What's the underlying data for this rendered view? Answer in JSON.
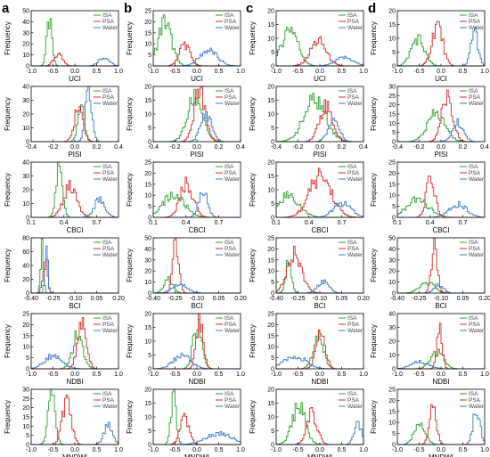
{
  "column_labels": [
    "a",
    "b",
    "c",
    "d"
  ],
  "legend_entries": [
    "ISA",
    "PSA",
    "Water"
  ],
  "ylabel": "Frequency",
  "colors": {
    "ISA": "#2e9e2e",
    "PSA": "#d42a2a",
    "Water": "#3a78c8",
    "hist": "#8a5a2a"
  },
  "rows": [
    {
      "index": "UCI",
      "xlim": [
        -1.0,
        1.0
      ],
      "xticks": [
        "-1.0",
        "-0.5",
        "0.0",
        "0.5",
        "1.0"
      ]
    },
    {
      "index": "PISI",
      "xlim": [
        -0.4,
        0.4
      ],
      "xticks": [
        "-0.4",
        "-0.2",
        "0.0",
        "0.2",
        "0.4"
      ]
    },
    {
      "index": "CBCI",
      "xlim": [
        0.1,
        0.9
      ],
      "xticks": [
        "0.1",
        "0.4",
        "0.7"
      ],
      "xticks_all": [
        "0.2",
        "0.3",
        "0.4",
        "0.5",
        "0.6",
        "0.7",
        "0.8"
      ]
    },
    {
      "index": "BCI",
      "xlim": [
        -0.4,
        0.2
      ],
      "xticks": [
        "-0.40",
        "-0.25",
        "-0.10",
        "0.05",
        "0.20"
      ]
    },
    {
      "index": "NDBI",
      "xlim": [
        -1.0,
        1.0
      ],
      "xticks": [
        "-1.0",
        "-0.5",
        "0.0",
        "0.5",
        "1.0"
      ]
    },
    {
      "index": "MNDWI",
      "xlim": [
        -1.0,
        1.0
      ],
      "xticks": [
        "-1.0",
        "-0.5",
        "0.0",
        "0.5",
        "1.0"
      ]
    }
  ],
  "chart_data": [
    {
      "type": "area",
      "col": "a",
      "index": "UCI",
      "ylim": [
        0,
        50
      ],
      "yticks": [
        "0",
        "10",
        "20",
        "30",
        "40",
        "50"
      ],
      "series": [
        {
          "name": "ISA",
          "center": -0.6,
          "sd": 0.06,
          "peak": 40
        },
        {
          "name": "PSA",
          "center": -0.4,
          "sd": 0.1,
          "peak": 10
        },
        {
          "name": "Water",
          "center": 0.65,
          "sd": 0.12,
          "peak": 8
        }
      ]
    },
    {
      "type": "area",
      "col": "b",
      "index": "UCI",
      "ylim": [
        0,
        25
      ],
      "yticks": [
        "0",
        "5",
        "10",
        "15",
        "20",
        "25"
      ],
      "series": [
        {
          "name": "ISA",
          "center": -0.75,
          "sd": 0.15,
          "peak": 20
        },
        {
          "name": "PSA",
          "center": -0.3,
          "sd": 0.12,
          "peak": 10
        },
        {
          "name": "Water",
          "center": 0.25,
          "sd": 0.2,
          "peak": 7
        }
      ]
    },
    {
      "type": "area",
      "col": "c",
      "index": "UCI",
      "ylim": [
        0,
        20
      ],
      "yticks": [
        "0",
        "5",
        "10",
        "15",
        "20"
      ],
      "series": [
        {
          "name": "ISA",
          "center": -0.7,
          "sd": 0.18,
          "peak": 14
        },
        {
          "name": "PSA",
          "center": -0.05,
          "sd": 0.18,
          "peak": 9
        },
        {
          "name": "Water",
          "center": 0.55,
          "sd": 0.2,
          "peak": 3
        }
      ]
    },
    {
      "type": "area",
      "col": "d",
      "index": "UCI",
      "ylim": [
        0,
        20
      ],
      "yticks": [
        "0",
        "5",
        "10",
        "15",
        "20"
      ],
      "series": [
        {
          "name": "ISA",
          "center": -0.55,
          "sd": 0.15,
          "peak": 10
        },
        {
          "name": "PSA",
          "center": -0.1,
          "sd": 0.12,
          "peak": 15
        },
        {
          "name": "Water",
          "center": 0.75,
          "sd": 0.08,
          "peak": 13
        }
      ]
    },
    {
      "type": "area",
      "col": "a",
      "index": "PISI",
      "ylim": [
        0,
        40
      ],
      "yticks": [
        "0",
        "10",
        "20",
        "30",
        "40"
      ],
      "series": [
        {
          "name": "ISA",
          "center": 0.05,
          "sd": 0.03,
          "peak": 25
        },
        {
          "name": "PSA",
          "center": 0.03,
          "sd": 0.04,
          "peak": 25
        },
        {
          "name": "Water",
          "center": 0.12,
          "sd": 0.03,
          "peak": 35
        }
      ]
    },
    {
      "type": "area",
      "col": "b",
      "index": "PISI",
      "ylim": [
        0,
        20
      ],
      "yticks": [
        "0",
        "5",
        "10",
        "15",
        "20"
      ],
      "series": [
        {
          "name": "ISA",
          "center": -0.02,
          "sd": 0.07,
          "peak": 16
        },
        {
          "name": "PSA",
          "center": 0.02,
          "sd": 0.05,
          "peak": 18
        },
        {
          "name": "Water",
          "center": 0.08,
          "sd": 0.05,
          "peak": 10
        }
      ]
    },
    {
      "type": "area",
      "col": "c",
      "index": "PISI",
      "ylim": [
        0,
        20
      ],
      "yticks": [
        "0",
        "5",
        "10",
        "15",
        "20"
      ],
      "series": [
        {
          "name": "ISA",
          "center": -0.05,
          "sd": 0.1,
          "peak": 15
        },
        {
          "name": "PSA",
          "center": 0.05,
          "sd": 0.06,
          "peak": 13
        },
        {
          "name": "Water",
          "center": 0.12,
          "sd": 0.05,
          "peak": 8
        }
      ]
    },
    {
      "type": "area",
      "col": "d",
      "index": "PISI",
      "ylim": [
        0,
        30
      ],
      "yticks": [
        "0",
        "5",
        "10",
        "15",
        "20",
        "25",
        "30"
      ],
      "series": [
        {
          "name": "ISA",
          "center": -0.05,
          "sd": 0.08,
          "peak": 15
        },
        {
          "name": "PSA",
          "center": 0.05,
          "sd": 0.05,
          "peak": 25
        },
        {
          "name": "Water",
          "center": 0.15,
          "sd": 0.05,
          "peak": 10
        }
      ]
    },
    {
      "type": "area",
      "col": "a",
      "index": "CBCI",
      "ylim": [
        0,
        40
      ],
      "yticks": [
        "0",
        "10",
        "20",
        "30",
        "40"
      ],
      "series": [
        {
          "name": "ISA",
          "center": 0.35,
          "sd": 0.03,
          "peak": 35
        },
        {
          "name": "PSA",
          "center": 0.45,
          "sd": 0.06,
          "peak": 22
        },
        {
          "name": "Water",
          "center": 0.72,
          "sd": 0.05,
          "peak": 13
        }
      ]
    },
    {
      "type": "area",
      "col": "b",
      "index": "CBCI",
      "ylim": [
        0,
        25
      ],
      "yticks": [
        "0",
        "5",
        "10",
        "15",
        "20",
        "25"
      ],
      "series": [
        {
          "name": "ISA",
          "center": 0.28,
          "sd": 0.1,
          "peak": 10
        },
        {
          "name": "PSA",
          "center": 0.4,
          "sd": 0.06,
          "peak": 15
        },
        {
          "name": "Water",
          "center": 0.55,
          "sd": 0.04,
          "peak": 12
        }
      ]
    },
    {
      "type": "area",
      "col": "c",
      "index": "CBCI",
      "ylim": [
        0,
        20
      ],
      "yticks": [
        "0",
        "5",
        "10",
        "15",
        "20"
      ],
      "series": [
        {
          "name": "ISA",
          "center": 0.2,
          "sd": 0.1,
          "peak": 8
        },
        {
          "name": "PSA",
          "center": 0.5,
          "sd": 0.1,
          "peak": 15
        },
        {
          "name": "Water",
          "center": 0.7,
          "sd": 0.08,
          "peak": 5
        }
      ]
    },
    {
      "type": "area",
      "col": "d",
      "index": "CBCI",
      "ylim": [
        0,
        25
      ],
      "yticks": [
        "0",
        "5",
        "10",
        "15",
        "20",
        "25"
      ],
      "series": [
        {
          "name": "ISA",
          "center": 0.28,
          "sd": 0.1,
          "peak": 8
        },
        {
          "name": "PSA",
          "center": 0.4,
          "sd": 0.04,
          "peak": 18
        },
        {
          "name": "Water",
          "center": 0.65,
          "sd": 0.08,
          "peak": 6
        }
      ]
    },
    {
      "type": "area",
      "col": "a",
      "index": "BCI",
      "ylim": [
        0,
        80
      ],
      "yticks": [
        "0",
        "20",
        "40",
        "60",
        "80"
      ],
      "series": [
        {
          "name": "ISA",
          "center": -0.33,
          "sd": 0.01,
          "peak": 70
        },
        {
          "name": "PSA",
          "center": -0.31,
          "sd": 0.015,
          "peak": 50
        },
        {
          "name": "Water",
          "center": -0.3,
          "sd": 0.01,
          "peak": 65
        }
      ]
    },
    {
      "type": "area",
      "col": "b",
      "index": "BCI",
      "ylim": [
        0,
        50
      ],
      "yticks": [
        "0",
        "10",
        "20",
        "30",
        "40",
        "50"
      ],
      "series": [
        {
          "name": "ISA",
          "center": -0.3,
          "sd": 0.03,
          "peak": 12
        },
        {
          "name": "PSA",
          "center": -0.25,
          "sd": 0.02,
          "peak": 48
        },
        {
          "name": "Water",
          "center": -0.22,
          "sd": 0.05,
          "peak": 8
        }
      ]
    },
    {
      "type": "area",
      "col": "c",
      "index": "BCI",
      "ylim": [
        0,
        25
      ],
      "yticks": [
        "0",
        "5",
        "10",
        "15",
        "20",
        "25"
      ],
      "series": [
        {
          "name": "ISA",
          "center": -0.32,
          "sd": 0.02,
          "peak": 14
        },
        {
          "name": "PSA",
          "center": -0.28,
          "sd": 0.05,
          "peak": 18
        },
        {
          "name": "Water",
          "center": -0.08,
          "sd": 0.04,
          "peak": 5
        }
      ]
    },
    {
      "type": "area",
      "col": "d",
      "index": "BCI",
      "ylim": [
        0,
        50
      ],
      "yticks": [
        "0",
        "10",
        "20",
        "30",
        "40",
        "50"
      ],
      "series": [
        {
          "name": "ISA",
          "center": -0.2,
          "sd": 0.05,
          "peak": 10
        },
        {
          "name": "PSA",
          "center": -0.15,
          "sd": 0.02,
          "peak": 45
        },
        {
          "name": "Water",
          "center": -0.12,
          "sd": 0.03,
          "peak": 8
        }
      ]
    },
    {
      "type": "area",
      "col": "a",
      "index": "NDBI",
      "ylim": [
        0,
        25
      ],
      "yticks": [
        "0",
        "5",
        "10",
        "15",
        "20",
        "25"
      ],
      "series": [
        {
          "name": "ISA",
          "center": 0.05,
          "sd": 0.12,
          "peak": 15
        },
        {
          "name": "PSA",
          "center": 0.15,
          "sd": 0.1,
          "peak": 22
        },
        {
          "name": "Water",
          "center": -0.5,
          "sd": 0.2,
          "peak": 6
        }
      ]
    },
    {
      "type": "area",
      "col": "b",
      "index": "NDBI",
      "ylim": [
        0,
        20
      ],
      "yticks": [
        "0",
        "5",
        "10",
        "15",
        "20"
      ],
      "series": [
        {
          "name": "ISA",
          "center": 0.0,
          "sd": 0.1,
          "peak": 16
        },
        {
          "name": "PSA",
          "center": 0.05,
          "sd": 0.08,
          "peak": 18
        },
        {
          "name": "Water",
          "center": -0.35,
          "sd": 0.2,
          "peak": 5
        }
      ]
    },
    {
      "type": "area",
      "col": "c",
      "index": "NDBI",
      "ylim": [
        0,
        25
      ],
      "yticks": [
        "0",
        "5",
        "10",
        "15",
        "20",
        "25"
      ],
      "series": [
        {
          "name": "ISA",
          "center": -0.05,
          "sd": 0.12,
          "peak": 14
        },
        {
          "name": "PSA",
          "center": 0.0,
          "sd": 0.1,
          "peak": 20
        },
        {
          "name": "Water",
          "center": -0.6,
          "sd": 0.25,
          "peak": 6
        }
      ]
    },
    {
      "type": "area",
      "col": "d",
      "index": "NDBI",
      "ylim": [
        0,
        40
      ],
      "yticks": [
        "0",
        "10",
        "20",
        "30",
        "40"
      ],
      "series": [
        {
          "name": "ISA",
          "center": -0.1,
          "sd": 0.15,
          "peak": 12
        },
        {
          "name": "PSA",
          "center": -0.05,
          "sd": 0.06,
          "peak": 28
        },
        {
          "name": "Water",
          "center": -0.5,
          "sd": 0.2,
          "peak": 5
        }
      ]
    },
    {
      "type": "area",
      "col": "a",
      "index": "MNDWI",
      "ylim": [
        0,
        30
      ],
      "yticks": [
        "0",
        "5",
        "10",
        "15",
        "20",
        "25",
        "30"
      ],
      "series": [
        {
          "name": "ISA",
          "center": -0.55,
          "sd": 0.08,
          "peak": 28
        },
        {
          "name": "PSA",
          "center": -0.2,
          "sd": 0.1,
          "peak": 25
        },
        {
          "name": "Water",
          "center": 0.75,
          "sd": 0.1,
          "peak": 10
        }
      ]
    },
    {
      "type": "area",
      "col": "b",
      "index": "MNDWI",
      "ylim": [
        0,
        20
      ],
      "yticks": [
        "0",
        "5",
        "10",
        "15",
        "20"
      ],
      "series": [
        {
          "name": "ISA",
          "center": -0.55,
          "sd": 0.06,
          "peak": 18
        },
        {
          "name": "PSA",
          "center": -0.3,
          "sd": 0.1,
          "peak": 10
        },
        {
          "name": "Water",
          "center": 0.5,
          "sd": 0.3,
          "peak": 4
        }
      ]
    },
    {
      "type": "area",
      "col": "c",
      "index": "MNDWI",
      "ylim": [
        0,
        20
      ],
      "yticks": [
        "0",
        "5",
        "10",
        "15",
        "20"
      ],
      "series": [
        {
          "name": "ISA",
          "center": -0.5,
          "sd": 0.15,
          "peak": 14
        },
        {
          "name": "PSA",
          "center": -0.2,
          "sd": 0.12,
          "peak": 11
        },
        {
          "name": "Water",
          "center": 0.85,
          "sd": 0.08,
          "peak": 8
        }
      ]
    },
    {
      "type": "area",
      "col": "d",
      "index": "MNDWI",
      "ylim": [
        0,
        25
      ],
      "yticks": [
        "0",
        "5",
        "10",
        "15",
        "20",
        "25"
      ],
      "series": [
        {
          "name": "ISA",
          "center": -0.5,
          "sd": 0.12,
          "peak": 10
        },
        {
          "name": "PSA",
          "center": -0.2,
          "sd": 0.08,
          "peak": 16
        },
        {
          "name": "Water",
          "center": 0.8,
          "sd": 0.08,
          "peak": 16
        }
      ]
    }
  ]
}
